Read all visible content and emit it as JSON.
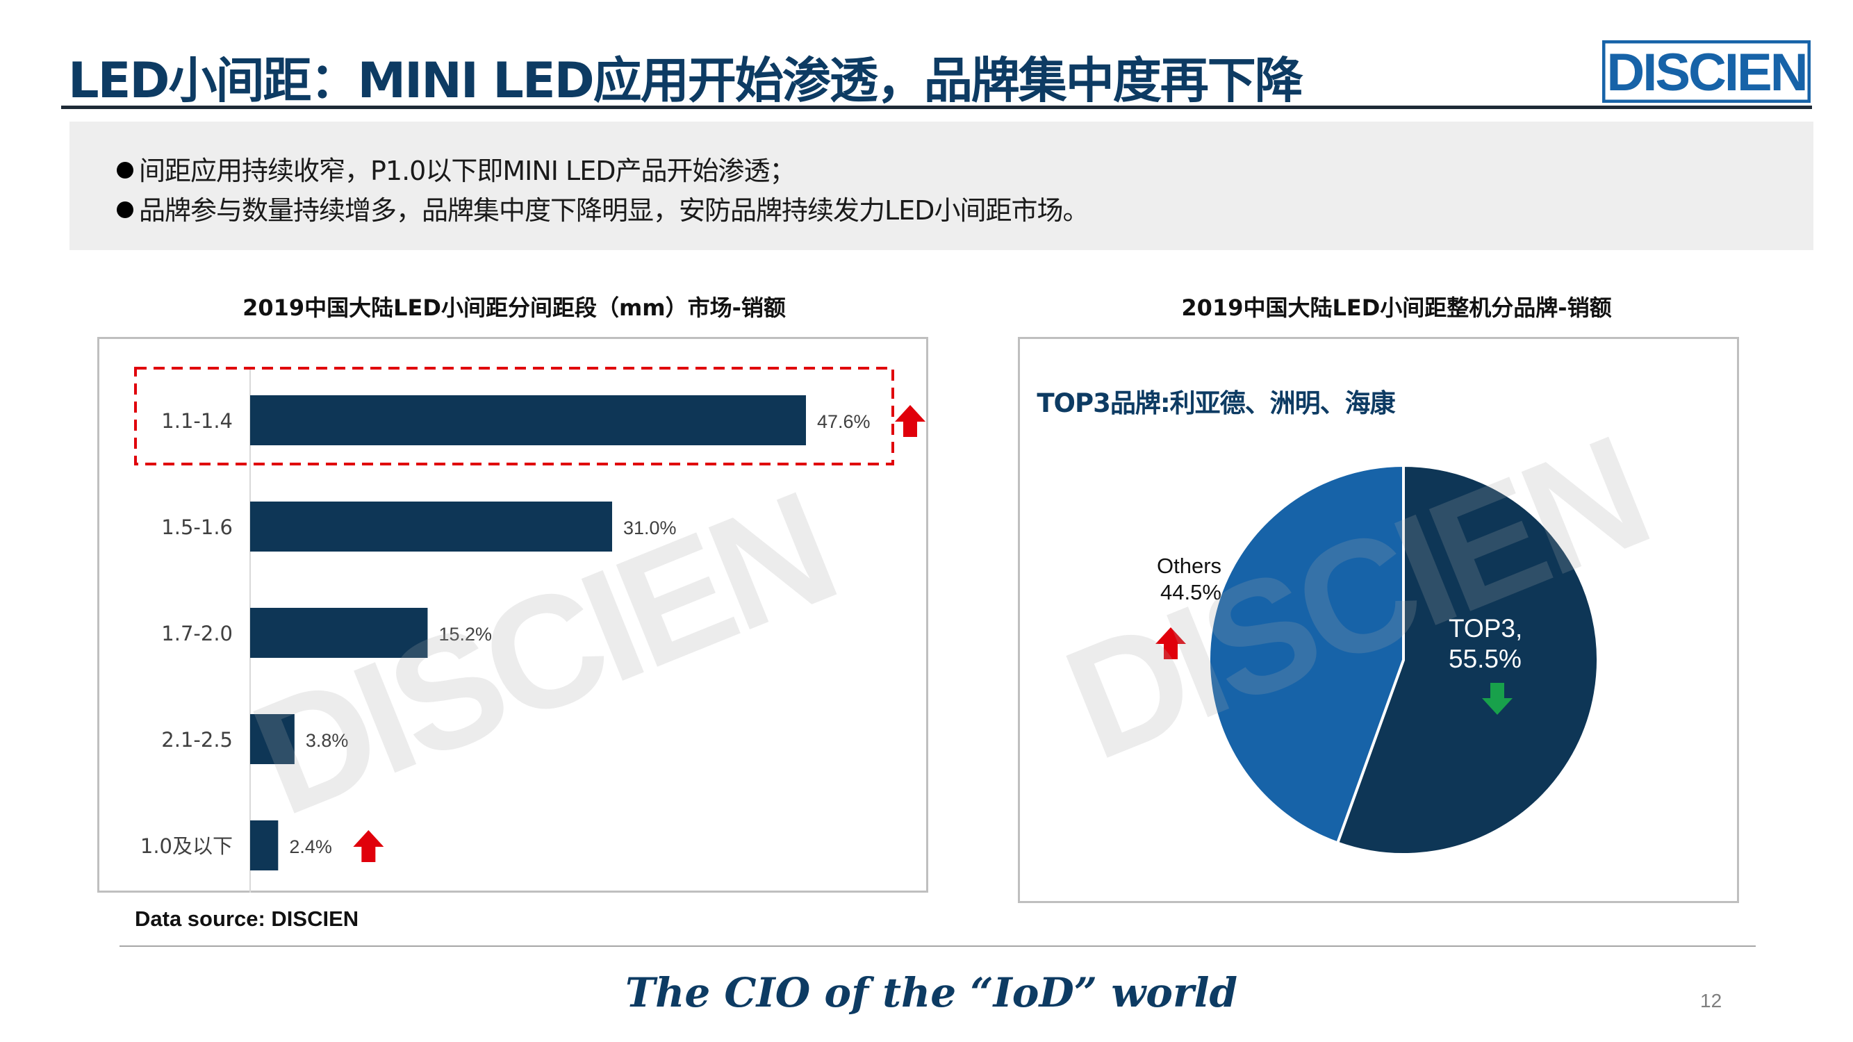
{
  "header": {
    "title": "LED小间距：MINI LED应用开始渗透，品牌集中度再下降",
    "logo_text": "DISCIEN"
  },
  "bullets": [
    "间距应用持续收窄，P1.0以下即MINI LED产品开始渗透；",
    "品牌参与数量持续增多，品牌集中度下降明显，安防品牌持续发力LED小间距市场。"
  ],
  "colors": {
    "title_blue": "#0d3b63",
    "bar_navy": "#0e3656",
    "pie_top3": "#0e3656",
    "pie_others": "#1763a8",
    "highlight_red": "#e0000b",
    "arrow_green": "#18a14b",
    "arrow_red": "#e0000b"
  },
  "chart_data": [
    {
      "type": "bar",
      "orientation": "horizontal",
      "title": "2019中国大陆LED小间距分间距段（mm）市场-销额",
      "categories": [
        "1.1-1.4",
        "1.5-1.6",
        "1.7-2.0",
        "2.1-2.5",
        "1.0及以下"
      ],
      "values": [
        47.6,
        31.0,
        15.2,
        3.8,
        2.4
      ],
      "value_labels": [
        "47.6%",
        "31.0%",
        "15.2%",
        "3.8%",
        "2.4%"
      ],
      "xlim": [
        0,
        47.6
      ],
      "grid": false,
      "annotations": [
        {
          "type": "dashed-box",
          "category": "1.1-1.4"
        },
        {
          "type": "up-arrow",
          "color": "red",
          "category": "1.1-1.4"
        },
        {
          "type": "up-arrow",
          "color": "red",
          "category": "1.0及以下"
        }
      ]
    },
    {
      "type": "pie",
      "title": "2019中国大陆LED小间距整机分品牌-销额",
      "subtitle": "TOP3品牌:利亚德、洲明、海康",
      "slices": [
        {
          "label_line1": "TOP3,",
          "label_line2": "55.5%",
          "value": 55.5,
          "trend": "down"
        },
        {
          "label_line1": "Others",
          "label_line2": "44.5%",
          "value": 44.5,
          "trend": "up"
        }
      ]
    }
  ],
  "footer": {
    "source": "Data source: DISCIEN",
    "tagline": "The CIO of the “IoD” world",
    "page_number": "12"
  }
}
